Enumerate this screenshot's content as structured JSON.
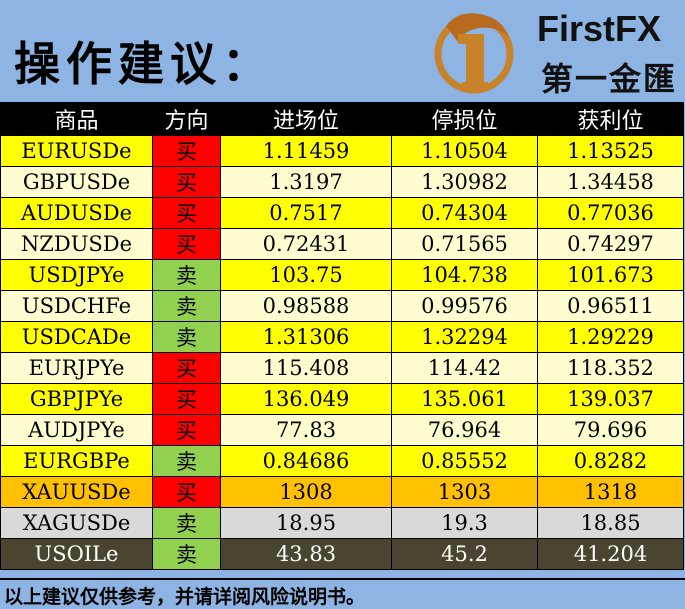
{
  "header": {
    "title": "操作建议：",
    "brand": "FirstFX",
    "brand_cn": "第一金匯"
  },
  "table": {
    "columns": [
      "商品",
      "方向",
      "进场位",
      "停损位",
      "获利位"
    ],
    "rows": [
      {
        "symbol": "EURUSDe",
        "direction": "买",
        "entry": "1.11459",
        "stop": "1.10504",
        "target": "1.13525"
      },
      {
        "symbol": "GBPUSDe",
        "direction": "买",
        "entry": "1.3197",
        "stop": "1.30982",
        "target": "1.34458"
      },
      {
        "symbol": "AUDUSDe",
        "direction": "买",
        "entry": "0.7517",
        "stop": "0.74304",
        "target": "0.77036"
      },
      {
        "symbol": "NZDUSDe",
        "direction": "买",
        "entry": "0.72431",
        "stop": "0.71565",
        "target": "0.74297"
      },
      {
        "symbol": "USDJPYe",
        "direction": "卖",
        "entry": "103.75",
        "stop": "104.738",
        "target": "101.673"
      },
      {
        "symbol": "USDCHFe",
        "direction": "卖",
        "entry": "0.98588",
        "stop": "0.99576",
        "target": "0.96511"
      },
      {
        "symbol": "USDCADe",
        "direction": "卖",
        "entry": "1.31306",
        "stop": "1.32294",
        "target": "1.29229"
      },
      {
        "symbol": "EURJPYe",
        "direction": "买",
        "entry": "115.408",
        "stop": "114.42",
        "target": "118.352"
      },
      {
        "symbol": "GBPJPYe",
        "direction": "买",
        "entry": "136.049",
        "stop": "135.061",
        "target": "139.037"
      },
      {
        "symbol": "AUDJPYe",
        "direction": "买",
        "entry": "77.83",
        "stop": "76.964",
        "target": "79.696"
      },
      {
        "symbol": "EURGBPe",
        "direction": "卖",
        "entry": "0.84686",
        "stop": "0.85552",
        "target": "0.8282"
      },
      {
        "symbol": "XAUUSDe",
        "direction": "买",
        "entry": "1308",
        "stop": "1303",
        "target": "1318"
      },
      {
        "symbol": "XAGUSDe",
        "direction": "卖",
        "entry": "18.95",
        "stop": "19.3",
        "target": "18.85"
      },
      {
        "symbol": "USOILe",
        "direction": "卖",
        "entry": "43.83",
        "stop": "45.2",
        "target": "41.204"
      }
    ]
  },
  "colors": {
    "buy": "#ff0000",
    "sell": "#92d050",
    "row_yellow": "#ffff00",
    "row_cream": "#fffdd0",
    "row_gold": "#ffc000",
    "row_silver": "#d9d9d9",
    "row_oil": "#4a4530",
    "header_bg": "#8db4e2"
  },
  "footer": {
    "disclaimer": "以上建议仅供参考，并请详阅风险说明书。"
  }
}
